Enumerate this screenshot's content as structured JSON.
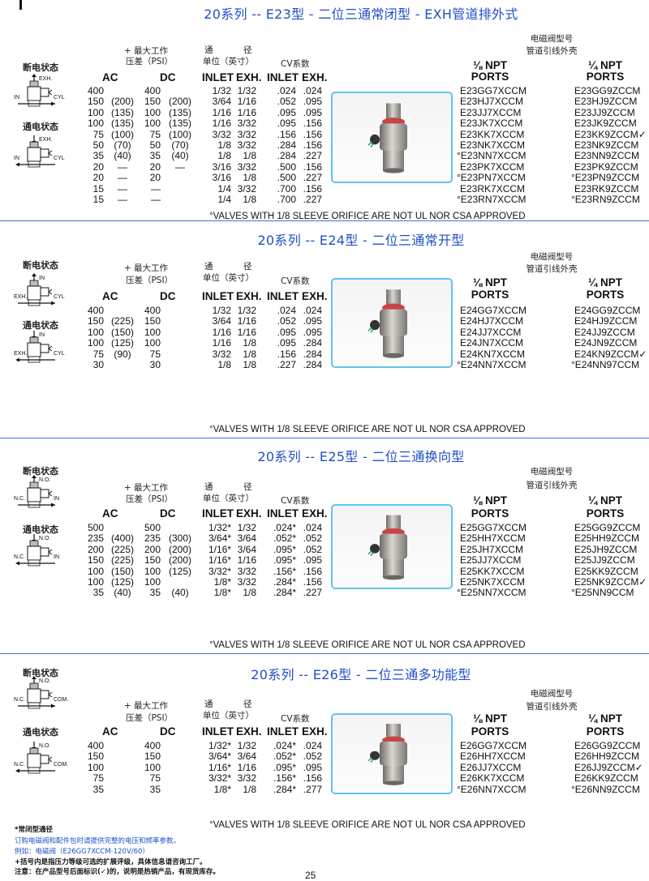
{
  "sections": [
    {
      "title": "20系列 -- E23型 - 二位三通常闭型 - EXH管道排外式",
      "diagram": {
        "off_label": "断电状态",
        "on_label": "通电状态",
        "top_port": "EXH.",
        "left_port": "IN",
        "right_port": "CYL"
      },
      "headers": {
        "max_pressure": "+ 最大工作",
        "psi": "压差（PSI）",
        "bore_1": "通",
        "bore_2": "径",
        "unit": "单位（英寸）",
        "cv": "CV系数",
        "ac": "AC",
        "dc": "DC",
        "inlet": "INLET",
        "exh": "EXH.",
        "cv_inlet": "INLET",
        "cv_exh": "EXH."
      },
      "solenoid": {
        "line1": "电磁阀型号",
        "line2": "管道引线外壳",
        "npt_18": "⅛ NPT",
        "npt_14": "¼  NPT",
        "ports": "PORTS"
      },
      "rows": [
        {
          "ac": "400",
          "ac_ext": "",
          "dc": "400",
          "dc_ext": "",
          "inlet": "1/32",
          "exh": "1/32",
          "cv_inlet": ".024",
          "cv_exh": ".024",
          "npt18": "E23GG7XCCM",
          "npt14": "E23GG9ZCCM"
        },
        {
          "ac": "150",
          "ac_ext": "(200)",
          "dc": "150",
          "dc_ext": "(200)",
          "inlet": "3/64",
          "exh": "1/16",
          "cv_inlet": ".052",
          "cv_exh": ".095",
          "npt18": "E23HJ7XCCM",
          "npt14": "E23HJ9ZCCM"
        },
        {
          "ac": "100",
          "ac_ext": "(135)",
          "dc": "100",
          "dc_ext": "(135)",
          "inlet": "1/16",
          "exh": "1/16",
          "cv_inlet": ".095",
          "cv_exh": ".095",
          "npt18": "E23JJ7XCCM",
          "npt14": "E23JJ9ZCCM"
        },
        {
          "ac": "100",
          "ac_ext": "(135)",
          "dc": "100",
          "dc_ext": "(135)",
          "inlet": "1/16",
          "exh": "3/32",
          "cv_inlet": ".095",
          "cv_exh": ".156",
          "npt18": "E23JK7XCCM",
          "npt14": "E23JK9ZCCM"
        },
        {
          "ac": "75",
          "ac_ext": "(100)",
          "dc": "75",
          "dc_ext": "(100)",
          "inlet": "3/32",
          "exh": "3/32",
          "cv_inlet": ".156",
          "cv_exh": ".156",
          "npt18": "E23KK7XCCM",
          "npt14": "E23KK9ZCCM✓"
        },
        {
          "ac": "50",
          "ac_ext": "(70)",
          "dc": "50",
          "dc_ext": "(70)",
          "inlet": "1/8",
          "exh": "3/32",
          "cv_inlet": ".284",
          "cv_exh": ".156",
          "npt18": "E23NK7XCCM",
          "npt14": "E23NK9ZCCM"
        },
        {
          "ac": "35",
          "ac_ext": "(40)",
          "dc": "35",
          "dc_ext": "(40)",
          "inlet": "1/8",
          "exh": "1/8",
          "cv_inlet": ".284",
          "cv_exh": ".227",
          "npt18": "°E23NN7XCCM",
          "npt14": "E23NN9ZCCM"
        },
        {
          "ac": "20",
          "ac_ext": "—",
          "dc": "20",
          "dc_ext": "—",
          "inlet": "3/16",
          "exh": "3/32",
          "cv_inlet": ".500",
          "cv_exh": ".156",
          "npt18": "E23PK7XCCM",
          "npt14": "E23PK9ZCCM"
        },
        {
          "ac": "20",
          "ac_ext": "—",
          "dc": "20",
          "dc_ext": "",
          "inlet": "3/16",
          "exh": "1/8",
          "cv_inlet": ".500",
          "cv_exh": ".227",
          "npt18": "°E23PN7XCCM",
          "npt14": "°E23PN9ZCCM"
        },
        {
          "ac": "15",
          "ac_ext": "—",
          "dc": "—",
          "dc_ext": "",
          "inlet": "1/4",
          "exh": "3/32",
          "cv_inlet": ".700",
          "cv_exh": ".156",
          "npt18": "E23RK7XCCM",
          "npt14": "E23RK9ZCCM"
        },
        {
          "ac": "15",
          "ac_ext": "—",
          "dc": "—",
          "dc_ext": "",
          "inlet": "1/4",
          "exh": "1/8",
          "cv_inlet": ".700",
          "cv_exh": ".227",
          "npt18": "°E23RN7XCCM",
          "npt14": "°E23RN9ZCCM"
        }
      ],
      "footnote": "°VALVES WITH 1/8 SLEEVE ORIFICE ARE NOT UL NOR CSA APPROVED"
    },
    {
      "title": "20系列 -- E24型 - 二位三通常开型",
      "diagram": {
        "off_label": "断电状态",
        "on_label": "通电状态",
        "top_port": "IN",
        "left_port": "EXH.",
        "right_port": "CYL"
      },
      "headers": {
        "max_pressure": "+ 最大工作",
        "psi": "压差（PSI）",
        "bore_1": "通",
        "bore_2": "径",
        "unit": "单位（英寸）",
        "cv": "CV系数",
        "ac": "AC",
        "dc": "DC",
        "inlet": "INLET",
        "exh": "EXH.",
        "cv_inlet": "INLET",
        "cv_exh": "EXH."
      },
      "solenoid": {
        "line1": "电磁阀型号",
        "line2": "管道引线外壳",
        "npt_18": "⅛ NPT",
        "npt_14": "¼ NPT",
        "ports": "PORTS"
      },
      "rows": [
        {
          "ac": "400",
          "ac_ext": "",
          "dc": "400",
          "dc_ext": "",
          "inlet": "1/32",
          "exh": "1/32",
          "cv_inlet": ".024",
          "cv_exh": ".024",
          "npt18": "E24GG7XCCM",
          "npt14": "E24GG9ZCCM"
        },
        {
          "ac": "150",
          "ac_ext": "(225)",
          "dc": "150",
          "dc_ext": "",
          "inlet": "3/64",
          "exh": "1/16",
          "cv_inlet": ".052",
          "cv_exh": ".095",
          "npt18": "E24HJ7XCCM",
          "npt14": "E24HJ9ZCCM"
        },
        {
          "ac": "100",
          "ac_ext": "(150)",
          "dc": "100",
          "dc_ext": "",
          "inlet": "1/16",
          "exh": "1/16",
          "cv_inlet": ".095",
          "cv_exh": ".095",
          "npt18": "E24JJ7XCCM",
          "npt14": "E24JJ9ZCCM"
        },
        {
          "ac": "100",
          "ac_ext": "(125)",
          "dc": "100",
          "dc_ext": "",
          "inlet": "1/16",
          "exh": "1/8",
          "cv_inlet": ".095",
          "cv_exh": ".284",
          "npt18": "E24JN7XCCM",
          "npt14": "E24JN9ZCCM"
        },
        {
          "ac": "75",
          "ac_ext": "(90)",
          "dc": "75",
          "dc_ext": "",
          "inlet": "3/32",
          "exh": "1/8",
          "cv_inlet": ".156",
          "cv_exh": ".284",
          "npt18": "E24KN7XCCM",
          "npt14": "E24KN9ZCCM✓"
        },
        {
          "ac": "30",
          "ac_ext": "",
          "dc": "30",
          "dc_ext": "",
          "inlet": "1/8",
          "exh": "1/8",
          "cv_inlet": ".227",
          "cv_exh": ".284",
          "npt18": "°E24NN7XCCM",
          "npt14": "°E24NN97CCM"
        }
      ],
      "footnote": "°VALVES WITH 1/8 SLEEVE ORIFICE ARE NOT UL NOR CSA APPROVED"
    },
    {
      "title": "20系列 -- E25型 - 二位三通换向型",
      "diagram": {
        "off_label": "断电状态",
        "on_label": "通电状态",
        "top_port": "N.O.",
        "left_port": "N.C.",
        "right_port": "IN"
      },
      "headers": {
        "max_pressure": "+ 最大工作",
        "psi": "压差（PSI）",
        "bore_1": "通",
        "bore_2": "径",
        "unit": "单位（英寸）",
        "cv": "CV系数",
        "ac": "AC",
        "dc": "DC",
        "inlet": "INLET",
        "exh": "EXH.",
        "cv_inlet": "INLET",
        "cv_exh": "EXH."
      },
      "solenoid": {
        "line1": "电磁阀型号",
        "line2": "管道引线外壳",
        "npt_18": "⅛ NPT",
        "npt_14": "¼ NPT",
        "ports": "PORTS"
      },
      "rows": [
        {
          "ac": "500",
          "ac_ext": "",
          "dc": "500",
          "dc_ext": "",
          "inlet": "1/32*",
          "exh": "1/32",
          "cv_inlet": ".024*",
          "cv_exh": ".024",
          "npt18": "E25GG7XCCM",
          "npt14": "E25GG9ZCCM"
        },
        {
          "ac": "235",
          "ac_ext": "(400)",
          "dc": "235",
          "dc_ext": "(300)",
          "inlet": "3/64*",
          "exh": "3/64",
          "cv_inlet": ".052*",
          "cv_exh": ".052",
          "npt18": "E25HH7XCCM",
          "npt14": "E25HH9ZCCM"
        },
        {
          "ac": "200",
          "ac_ext": "(225)",
          "dc": "200",
          "dc_ext": "(200)",
          "inlet": "1/16*",
          "exh": "3/64",
          "cv_inlet": ".095*",
          "cv_exh": ".052",
          "npt18": "E25JH7XCCM",
          "npt14": "E25JH9ZCCM"
        },
        {
          "ac": "150",
          "ac_ext": "(225)",
          "dc": "150",
          "dc_ext": "(200)",
          "inlet": "1/16*",
          "exh": "1/16",
          "cv_inlet": ".095*",
          "cv_exh": ".095",
          "npt18": "E25JJ7XCCM",
          "npt14": "E25JJ9ZCCM"
        },
        {
          "ac": "100",
          "ac_ext": "(150)",
          "dc": "100",
          "dc_ext": "(125)",
          "inlet": "3/32*",
          "exh": "3/32",
          "cv_inlet": ".156*",
          "cv_exh": ".156",
          "npt18": "E25KK7XCCM",
          "npt14": "E25KK9ZCCM"
        },
        {
          "ac": "100",
          "ac_ext": "(125)",
          "dc": "100",
          "dc_ext": "",
          "inlet": "1/8*",
          "exh": "3/32",
          "cv_inlet": ".284*",
          "cv_exh": ".156",
          "npt18": "E25NK7XCCM",
          "npt14": "E25NK9ZCCM✓"
        },
        {
          "ac": "35",
          "ac_ext": "(40)",
          "dc": "35",
          "dc_ext": "(40)",
          "inlet": "1/8*",
          "exh": "1/8",
          "cv_inlet": ".284*",
          "cv_exh": ".227",
          "npt18": "°E25NN7XCCM",
          "npt14": "°E25NN9CCM"
        }
      ],
      "footnote": "°VALVES WITH 1/8 SLEEVE ORIFICE ARE NOT UL NOR CSA APPROVED"
    },
    {
      "title": "20系列 -- E26型 - 二位三通多功能型",
      "diagram": {
        "off_label": "断电状态",
        "on_label": "通电状态",
        "top_port": "N.O.",
        "left_port": "N.C.",
        "right_port": "COM."
      },
      "headers": {
        "max_pressure": "+ 最大工作",
        "psi": "压差（PSI）",
        "bore_1": "通",
        "bore_2": "径",
        "unit": "单位（英寸）",
        "cv": "CV系数",
        "ac": "AC",
        "dc": "DC",
        "inlet": "INLET",
        "exh": "EXH.",
        "cv_inlet": "INLET",
        "cv_exh": "EXH."
      },
      "solenoid": {
        "line1": "电磁阀型号",
        "line2": "管道引线外壳",
        "npt_18": "⅛ NPT",
        "npt_14": "¼ NPT",
        "ports": "PORTS"
      },
      "rows": [
        {
          "ac": "400",
          "ac_ext": "",
          "dc": "400",
          "dc_ext": "",
          "inlet": "1/32*",
          "exh": "1/32",
          "cv_inlet": ".024*",
          "cv_exh": ".024",
          "npt18": "E26GG7XCCM",
          "npt14": "E26GG9ZCCM"
        },
        {
          "ac": "150",
          "ac_ext": "",
          "dc": "150",
          "dc_ext": "",
          "inlet": "3/64*",
          "exh": "3/64",
          "cv_inlet": ".052*",
          "cv_exh": ".052",
          "npt18": "E26HH7XCCM",
          "npt14": "E26HH9ZCCM"
        },
        {
          "ac": "100",
          "ac_ext": "",
          "dc": "100",
          "dc_ext": "",
          "inlet": "1/16*",
          "exh": "1/16",
          "cv_inlet": ".095*",
          "cv_exh": ".095",
          "npt18": "E26JJ7XCCM",
          "npt14": "E26JJ9ZCCM✓"
        },
        {
          "ac": "75",
          "ac_ext": "",
          "dc": "75",
          "dc_ext": "",
          "inlet": "3/32*",
          "exh": "3/32",
          "cv_inlet": ".156*",
          "cv_exh": ".156",
          "npt18": "E26KK7XCCM",
          "npt14": "E26KK9ZCCM"
        },
        {
          "ac": "35",
          "ac_ext": "",
          "dc": "35",
          "dc_ext": "",
          "inlet": "1/8*",
          "exh": "1/8",
          "cv_inlet": ".284*",
          "cv_exh": ".277",
          "npt18": "°E26NN7XCCM",
          "npt14": "°E26NN9ZCCM"
        }
      ],
      "footnote": "°VALVES WITH 1/8 SLEEVE ORIFICE ARE NOT UL NOR CSA APPROVED"
    }
  ],
  "notes": {
    "line1": "*常闭型通径",
    "line2": "订购电磁阀和配件包时请提供完整的电压和频率参数。",
    "line3": "例如：电磁阀（E26GG7XCCM-120V/60）",
    "line4": "+括号内是指压力等级可选的扩展评级，具体信息请咨询工厂。",
    "line5": "注意：在产品型号后面标识(✓)的，说明是热销产品，有现货库存。"
  },
  "page_number": "25",
  "colors": {
    "title": "#1f4fc8",
    "divider": "#3f72d2",
    "photo_border": "#62c3ee"
  }
}
